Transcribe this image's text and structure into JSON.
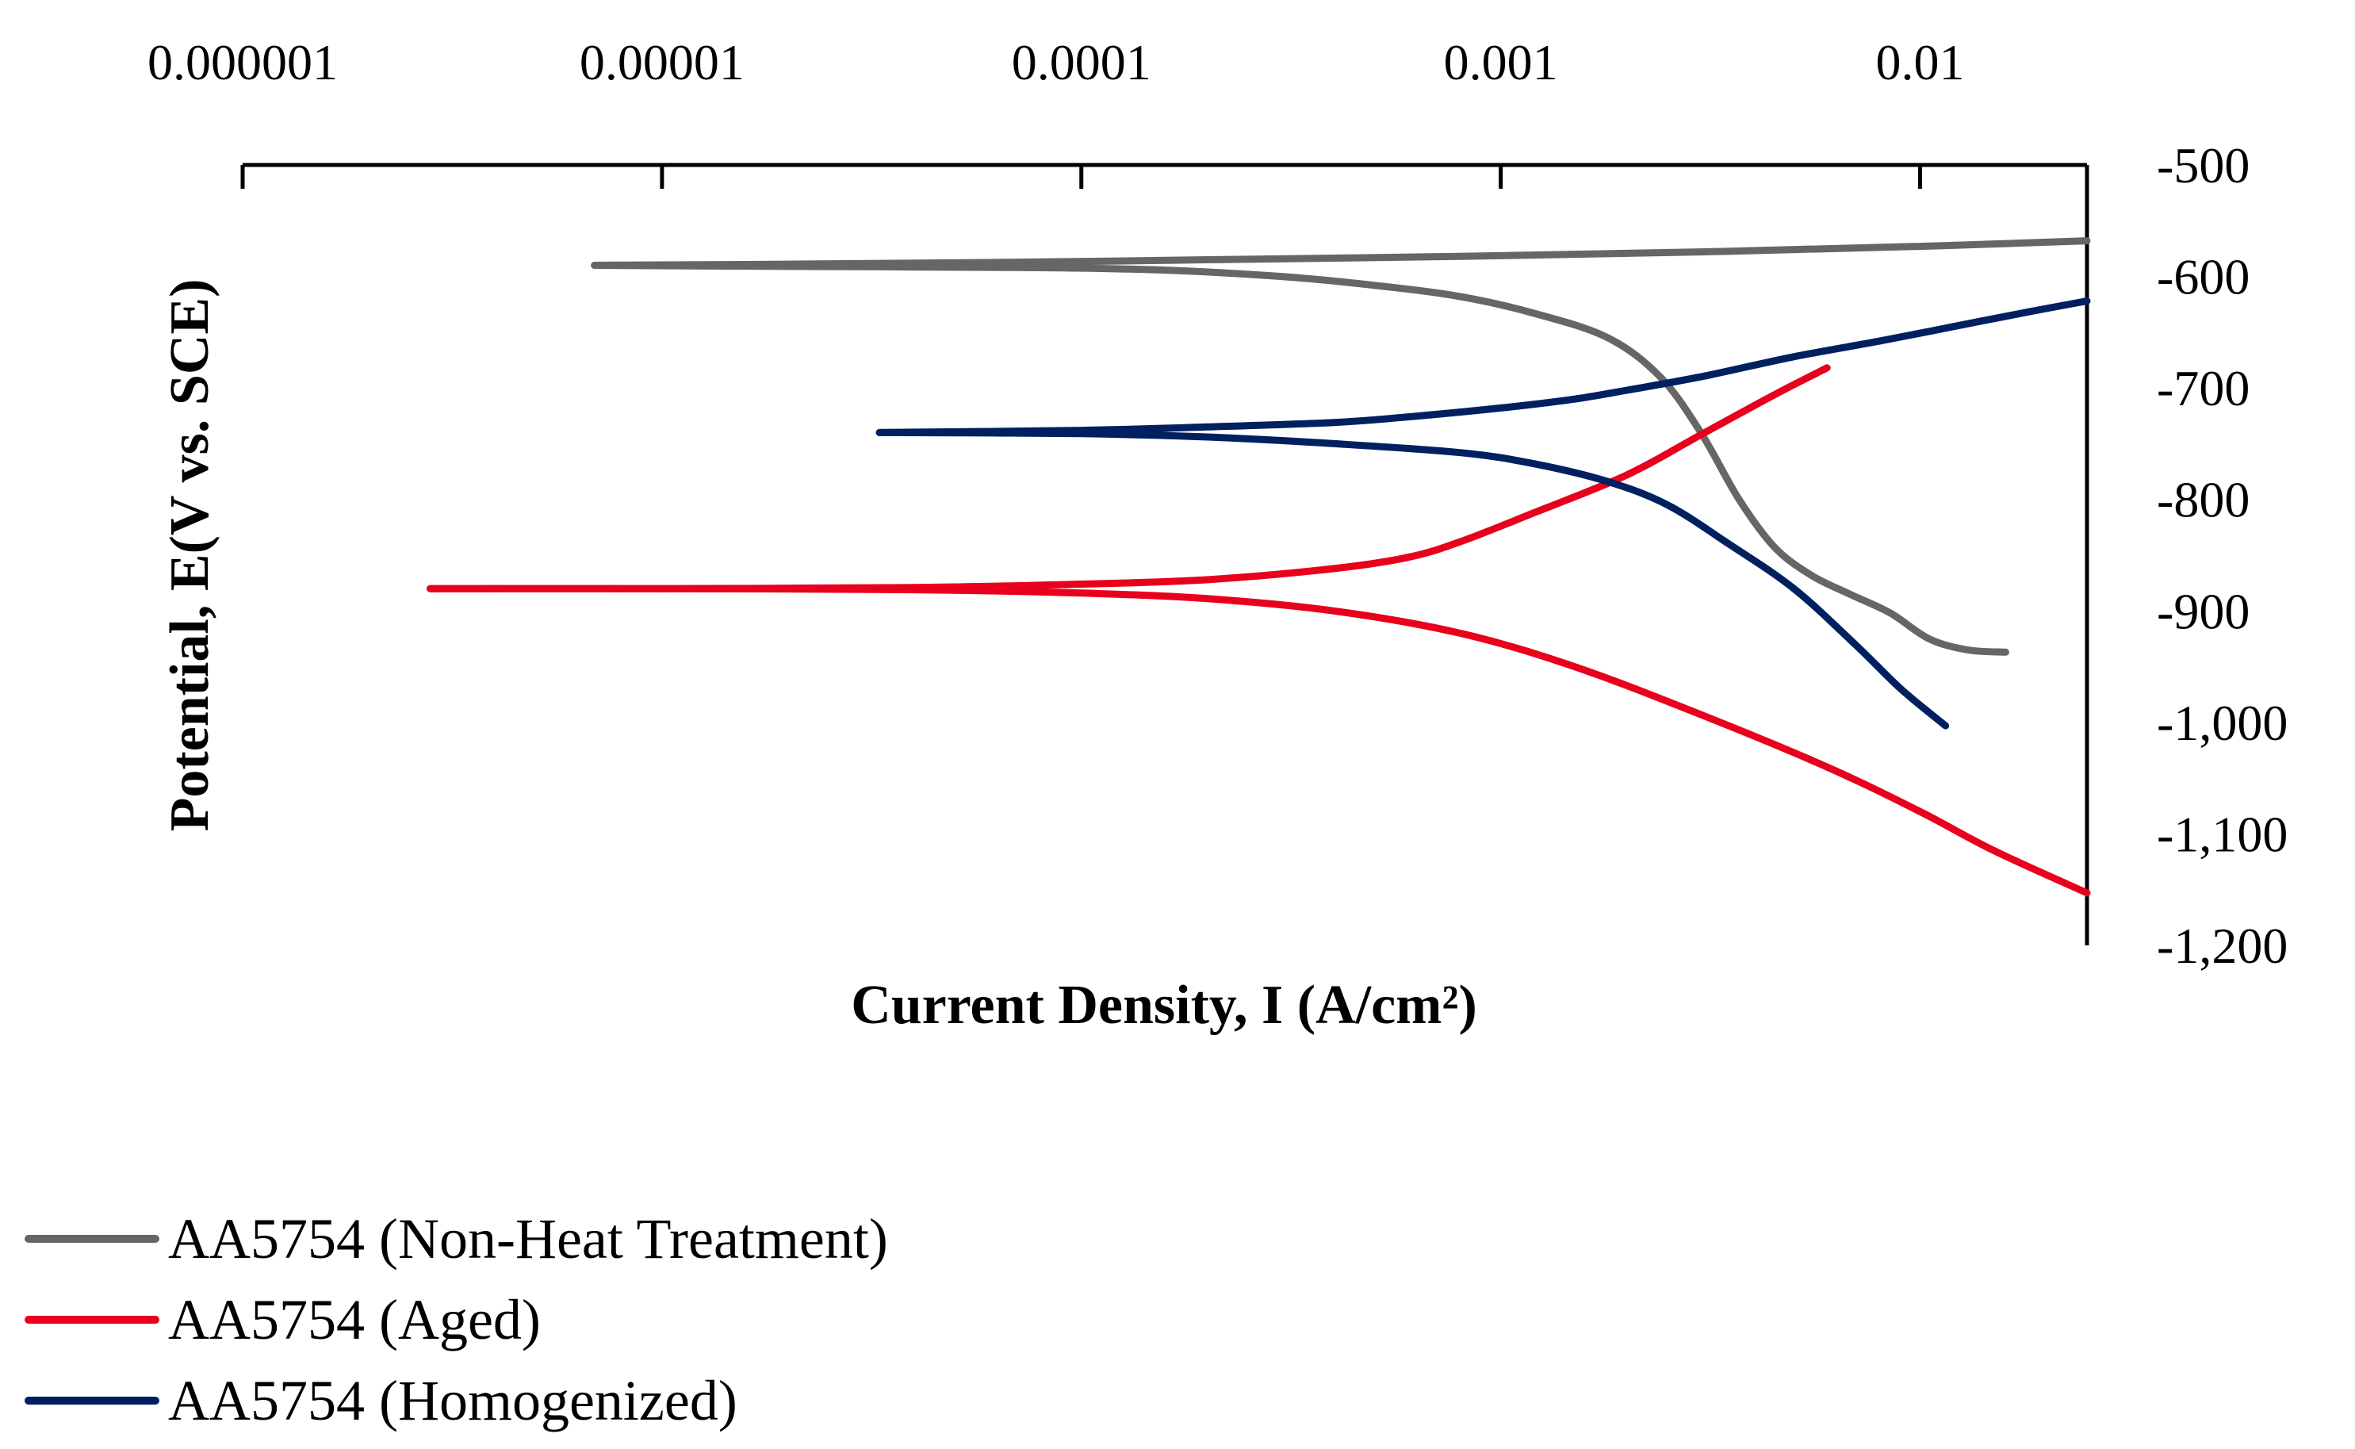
{
  "chart_data": {
    "type": "line",
    "title": "",
    "xlabel": "Current Density, I (A/cm²)",
    "ylabel": "Potential, E(V vs. SCE)",
    "x_scale": "log",
    "xlim": [
      1e-06,
      0.025
    ],
    "ylim": [
      -1200,
      -500
    ],
    "x_axis_position": "top",
    "y_axis_position": "right",
    "x_ticks": [
      1e-06,
      1e-05,
      0.0001,
      0.001,
      0.01
    ],
    "x_tick_labels": [
      "0.000001",
      "0.00001",
      "0.0001",
      "0.001",
      "0.01"
    ],
    "y_ticks": [
      -500,
      -600,
      -700,
      -800,
      -900,
      -1000,
      -1100,
      -1200
    ],
    "y_tick_labels": [
      "-500",
      "-600",
      "-700",
      "-800",
      "-900",
      "-1,000",
      "-1,100",
      "-1,200"
    ],
    "grid": false,
    "legend_position": "bottom-left",
    "series": [
      {
        "name": "AA5754 (Non-Heat Treatment)",
        "color": "#666666",
        "branches": [
          {
            "x": [
              6.9e-06,
              2e-05,
              8e-05,
              0.0002,
              0.0008,
              0.003,
              0.01,
              0.025
            ],
            "y": [
              -590,
              -589,
              -587,
              -585,
              -582,
              -578,
              -573,
              -568
            ]
          },
          {
            "x": [
              6.9e-06,
              2e-05,
              7e-05,
              0.00015,
              0.0003,
              0.0005,
              0.0008,
              0.0012,
              0.0018,
              0.0024,
              0.003,
              0.0037,
              0.0045,
              0.0055,
              0.0068,
              0.0085,
              0.0105,
              0.013,
              0.016
            ],
            "y": [
              -590,
              -591,
              -592,
              -594,
              -600,
              -608,
              -618,
              -633,
              -655,
              -690,
              -740,
              -800,
              -843,
              -868,
              -885,
              -902,
              -925,
              -935,
              -937
            ]
          }
        ]
      },
      {
        "name": "AA5754 (Aged)",
        "color": "#e8001c",
        "branches": [
          {
            "x": [
              2.8e-06,
              1e-05,
              4e-05,
              0.0001,
              0.0002,
              0.0004,
              0.0006,
              0.0008,
              0.0012,
              0.002,
              0.003,
              0.0045,
              0.006
            ],
            "y": [
              -880,
              -880,
              -879,
              -876,
              -872,
              -862,
              -852,
              -838,
              -812,
              -778,
              -742,
              -706,
              -682
            ]
          },
          {
            "x": [
              2.8e-06,
              1e-05,
              4e-05,
              0.0001,
              0.0002,
              0.0004,
              0.0008,
              0.0015,
              0.003,
              0.006,
              0.01,
              0.015,
              0.025
            ],
            "y": [
              -880,
              -880,
              -881,
              -884,
              -889,
              -900,
              -920,
              -950,
              -993,
              -1040,
              -1080,
              -1115,
              -1153
            ]
          }
        ]
      },
      {
        "name": "AA5754 (Homogenized)",
        "color": "#002060",
        "branches": [
          {
            "x": [
              3.3e-05,
              0.0001,
              0.0002,
              0.0004,
              0.0006,
              0.001,
              0.0015,
              0.002,
              0.003,
              0.005,
              0.008,
              0.012,
              0.018,
              0.025
            ],
            "y": [
              -740,
              -738,
              -735,
              -731,
              -726,
              -718,
              -710,
              -702,
              -690,
              -672,
              -658,
              -645,
              -632,
              -622
            ]
          },
          {
            "x": [
              3.3e-05,
              0.0001,
              0.0002,
              0.0004,
              0.0008,
              0.0012,
              0.0018,
              0.0025,
              0.0035,
              0.005,
              0.007,
              0.009,
              0.0115
            ],
            "y": [
              -740,
              -741,
              -744,
              -750,
              -758,
              -768,
              -784,
              -805,
              -840,
              -880,
              -930,
              -970,
              -1003
            ]
          }
        ]
      }
    ]
  }
}
